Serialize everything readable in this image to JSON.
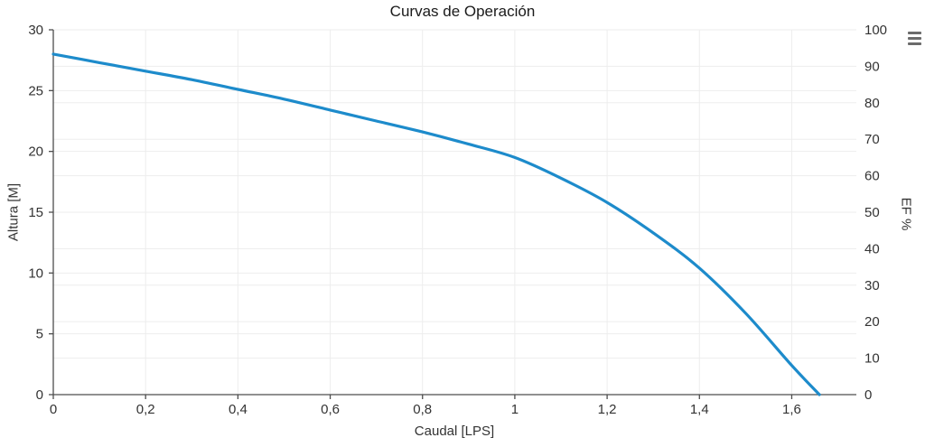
{
  "header": {
    "title": "Curvas de Operación",
    "menu_icon": "hamburger-menu-icon"
  },
  "colors": {
    "curve": "#1d8bcb",
    "grid": "#ededed",
    "axis": "#4d4d4d",
    "tick_text": "#333333",
    "title_text": "#1a1a1a",
    "menu_icon": "#6b6b6b",
    "background": "#ffffff"
  },
  "chart_data": {
    "type": "line",
    "title": "Curvas de Operación",
    "xlabel": "Caudal [LPS]",
    "ylabel_left": "Altura [M]",
    "ylabel_right": "EF %",
    "xlim": [
      0,
      1.74
    ],
    "ylim_left": [
      0,
      30
    ],
    "ylim_right": [
      0,
      100
    ],
    "x_ticks": [
      0,
      0.2,
      0.4,
      0.6,
      0.8,
      1.0,
      1.2,
      1.4,
      1.6
    ],
    "x_tick_labels": [
      "0",
      "0,2",
      "0,4",
      "0,6",
      "0,8",
      "1",
      "1,2",
      "1,4",
      "1,6"
    ],
    "y_ticks_left": [
      0,
      5,
      10,
      15,
      20,
      25,
      30
    ],
    "y_tick_labels_left": [
      "0",
      "5",
      "10",
      "15",
      "20",
      "25",
      "30"
    ],
    "y_ticks_right": [
      0,
      10,
      20,
      30,
      40,
      50,
      60,
      70,
      80,
      90,
      100
    ],
    "y_tick_labels_right": [
      "0",
      "10",
      "20",
      "30",
      "40",
      "50",
      "60",
      "70",
      "80",
      "90",
      "100"
    ],
    "grid": true,
    "legend": "none",
    "series": [
      {
        "name": "Altura [M]",
        "yaxis": "left",
        "color": "#1d8bcb",
        "x": [
          0,
          0.1,
          0.2,
          0.3,
          0.4,
          0.5,
          0.6,
          0.7,
          0.8,
          0.9,
          1.0,
          1.1,
          1.2,
          1.3,
          1.4,
          1.5,
          1.6,
          1.66
        ],
        "y": [
          28.0,
          27.3,
          26.6,
          25.9,
          25.1,
          24.3,
          23.4,
          22.5,
          21.6,
          20.6,
          19.5,
          17.8,
          15.8,
          13.3,
          10.4,
          6.7,
          2.4,
          0.0
        ]
      }
    ]
  }
}
